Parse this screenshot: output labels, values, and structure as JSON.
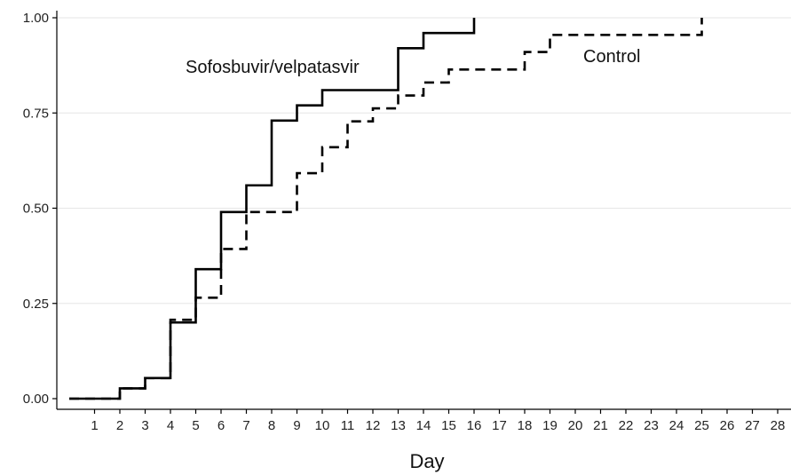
{
  "chart_data": {
    "type": "line",
    "step": true,
    "title": "",
    "xlabel": "Day",
    "ylabel": "",
    "xlim": [
      0,
      28
    ],
    "ylim": [
      0,
      1
    ],
    "x_ticks": [
      "1",
      "2",
      "3",
      "4",
      "5",
      "6",
      "7",
      "8",
      "9",
      "10",
      "11",
      "12",
      "13",
      "14",
      "15",
      "16",
      "17",
      "18",
      "19",
      "20",
      "21",
      "22",
      "23",
      "24",
      "25",
      "26",
      "27",
      "28"
    ],
    "y_ticks": [
      "0.00",
      "0.25",
      "0.50",
      "0.75",
      "1.00"
    ],
    "y_tick_values": [
      0,
      0.25,
      0.5,
      0.75,
      1.0
    ],
    "grid": "horizontal",
    "series": [
      {
        "name": "Sofosbuvir/velpatasvir",
        "line_style": "solid",
        "color": "#000000",
        "x": [
          0,
          2,
          3,
          4,
          5,
          6,
          7,
          8,
          9,
          10,
          13,
          14,
          16
        ],
        "y": [
          0.0,
          0.027,
          0.054,
          0.2,
          0.34,
          0.49,
          0.56,
          0.73,
          0.77,
          0.81,
          0.92,
          0.96,
          1.0
        ]
      },
      {
        "name": "Control",
        "line_style": "dashed",
        "color": "#000000",
        "x": [
          0,
          2,
          3,
          4,
          5,
          6,
          7,
          9,
          10,
          11,
          12,
          13,
          14,
          15,
          18,
          19,
          25
        ],
        "y": [
          0.0,
          0.027,
          0.054,
          0.207,
          0.265,
          0.393,
          0.49,
          0.592,
          0.66,
          0.728,
          0.762,
          0.796,
          0.83,
          0.864,
          0.91,
          0.955,
          1.0
        ]
      }
    ]
  }
}
